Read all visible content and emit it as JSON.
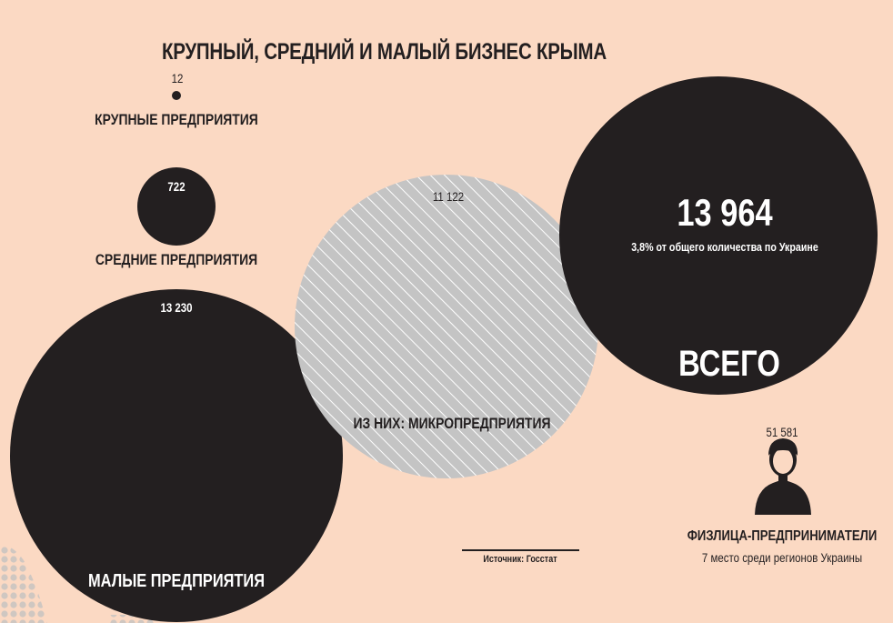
{
  "title": "КРУПНЫЙ, СРЕДНИЙ И МАЛЫЙ БИЗНЕС КРЫМА",
  "colors": {
    "background": "#fbd9c3",
    "dark": "#231f20",
    "micro_fill": "#c4c4c4",
    "hatch": "#ffffff"
  },
  "chart_data": {
    "type": "bubble",
    "title": "КРУПНЫЙ, СРЕДНИЙ И МАЛЫЙ БИЗНЕС КРЫМА",
    "bubbles": [
      {
        "label": "КРУПНЫЕ ПРЕДПРИЯТИЯ",
        "value": 12,
        "value_text": "12"
      },
      {
        "label": "СРЕДНИЕ ПРЕДПРИЯТИЯ",
        "value": 722,
        "value_text": "722"
      },
      {
        "label": "МАЛЫЕ ПРЕДПРИЯТИЯ",
        "value": 13230,
        "value_text": "13 230"
      },
      {
        "label": "ИЗ НИХ:  МИКРОПРЕДПРИЯТИЯ",
        "value": 11122,
        "value_text": "11 122"
      },
      {
        "label": "ВСЕГО",
        "value": 13964,
        "value_text": "13 964",
        "note": "3,8% от общего количества по Украине"
      }
    ],
    "individual_entrepreneurs": {
      "value": 51581,
      "value_text": "51 581",
      "label": "ФИЗЛИЦА-ПРЕДПРИНИМАТЕЛИ",
      "note": "7 место среди регионов Украины",
      "icon": "person-icon"
    },
    "source": "Источник: Госстат"
  }
}
